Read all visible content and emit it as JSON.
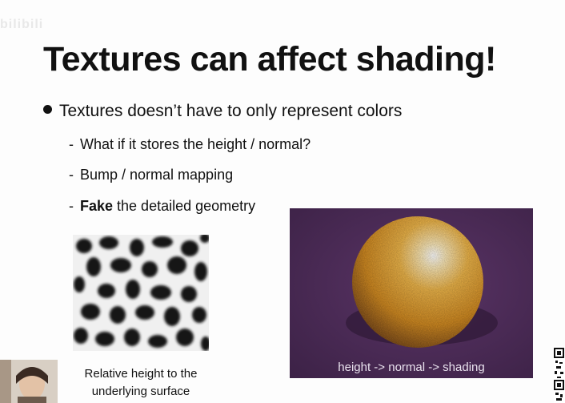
{
  "watermark": "bilibili",
  "title": "Textures can affect shading!",
  "bullet": {
    "text": "Textures doesn’t have to only represent colors"
  },
  "sub_items": [
    {
      "dash": "-",
      "text": "What if it stores the height / normal?"
    },
    {
      "dash": "-",
      "text": "Bump / normal mapping"
    },
    {
      "dash": "-",
      "bold": "Fake",
      "text": " the detailed geometry"
    }
  ],
  "figures": {
    "height_map_caption_line1": "Relative height to the",
    "height_map_caption_line2": "underlying surface",
    "orange_caption": "height -> normal -> shading"
  },
  "colors": {
    "orange_bg": "#4a2a56",
    "orange_main": "#e5a233",
    "text": "#111111"
  },
  "icons": {
    "bullet": "filled-circle",
    "qr": "qr-code-icon"
  }
}
